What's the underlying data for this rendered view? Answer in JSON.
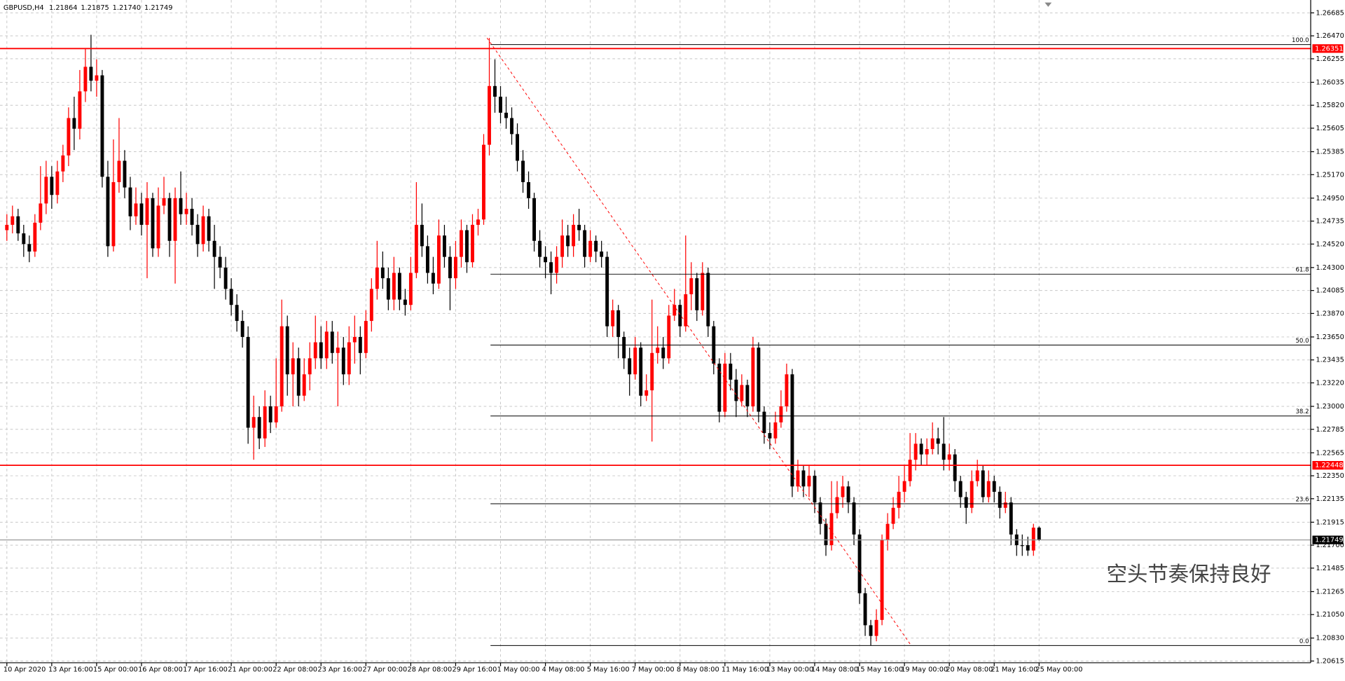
{
  "chart_data": {
    "type": "candlestick",
    "symbol": "GBPUSD,H4",
    "header_values": [
      1.21864,
      1.21875,
      {
        "value": 1.2174,
        "label": "1.21740"
      },
      1.21749
    ],
    "up_color": "#ff0000",
    "down_color": "#000000",
    "grid": true,
    "categories": [
      "10 Apr 2020",
      null,
      null,
      null,
      null,
      null,
      null,
      null,
      "13 Apr 16:00",
      null,
      null,
      null,
      null,
      null,
      null,
      null,
      "15 Apr 00:00",
      null,
      null,
      null,
      null,
      null,
      null,
      null,
      "16 Apr 08:00",
      null,
      null,
      null,
      null,
      null,
      null,
      null,
      "17 Apr 16:00",
      null,
      null,
      null,
      null,
      null,
      null,
      null,
      "21 Apr 00:00",
      null,
      null,
      null,
      null,
      null,
      null,
      null,
      "22 Apr 08:00",
      null,
      null,
      null,
      null,
      null,
      null,
      null,
      "23 Apr 16:00",
      null,
      null,
      null,
      null,
      null,
      null,
      null,
      "27 Apr 00:00",
      null,
      null,
      null,
      null,
      null,
      null,
      null,
      "28 Apr 08:00",
      null,
      null,
      null,
      null,
      null,
      null,
      null,
      "29 Apr 16:00",
      null,
      null,
      null,
      null,
      null,
      null,
      null,
      "1 May 00:00",
      null,
      null,
      null,
      null,
      null,
      null,
      null,
      "4 May 08:00",
      null,
      null,
      null,
      null,
      null,
      null,
      null,
      "5 May 16:00",
      null,
      null,
      null,
      null,
      null,
      null,
      null,
      "7 May 00:00",
      null,
      null,
      null,
      null,
      null,
      null,
      null,
      "8 May 08:00",
      null,
      null,
      null,
      null,
      null,
      null,
      null,
      "11 May 16:00",
      null,
      null,
      null,
      null,
      null,
      null,
      null,
      "13 May 00:00",
      null,
      null,
      null,
      null,
      null,
      null,
      null,
      "14 May 08:00",
      null,
      null,
      null,
      null,
      null,
      null,
      null,
      "15 May 16:00",
      null,
      null,
      null,
      null,
      null,
      null,
      null,
      "19 May 00:00",
      null,
      null,
      null,
      null,
      null,
      null,
      null,
      "20 May 08:00",
      null,
      null,
      null,
      null,
      null,
      null,
      null,
      "21 May 16:00",
      null,
      null,
      null,
      null,
      null,
      null,
      null,
      "25 May 00:00"
    ],
    "open": [
      1.2465,
      1.247,
      1.2478,
      1.2462,
      1.2452,
      1.2445,
      1.2472,
      1.249,
      1.2515,
      1.2498,
      1.252,
      1.2535,
      1.257,
      1.256,
      1.2595,
      1.2618,
      1.2605,
      1.261,
      1.2515,
      1.245,
      1.251,
      1.253,
      1.2505,
      1.2478,
      1.249,
      1.247,
      1.2495,
      1.2448,
      1.2488,
      1.2495,
      1.2455,
      1.2495,
      1.248,
      1.2485,
      1.247,
      1.2452,
      1.2478,
      1.2455,
      1.244,
      1.243,
      1.241,
      1.2395,
      1.238,
      1.2365,
      1.228,
      1.229,
      1.227,
      1.23,
      1.2285,
      1.23,
      1.2375,
      1.233,
      1.2345,
      1.231,
      1.233,
      1.2345,
      1.236,
      1.2345,
      1.237,
      1.235,
      1.2355,
      1.233,
      1.236,
      1.2365,
      1.235,
      1.238,
      1.241,
      1.243,
      1.242,
      1.24,
      1.2425,
      1.24,
      1.2395,
      1.2425,
      1.247,
      1.245,
      1.2425,
      1.2415,
      1.246,
      1.244,
      1.242,
      1.244,
      1.2465,
      1.2435,
      1.247,
      1.2475,
      1.2545,
      1.26,
      1.259,
      1.2575,
      1.257,
      1.2555,
      1.253,
      1.251,
      1.2495,
      1.2455,
      1.244,
      1.2435,
      1.2425,
      1.244,
      1.246,
      1.245,
      1.247,
      1.2465,
      1.244,
      1.2455,
      1.2445,
      1.244,
      1.2375,
      1.239,
      1.2365,
      1.2345,
      1.233,
      1.2355,
      1.231,
      1.2315,
      1.235,
      1.2355,
      1.2345,
      1.2385,
      1.2395,
      1.2375,
      1.2405,
      1.242,
      1.239,
      1.2425,
      1.2375,
      1.234,
      1.2295,
      1.234,
      1.2325,
      1.2305,
      1.232,
      1.23,
      1.2355,
      1.2295,
      1.2275,
      1.227,
      1.2285,
      1.23,
      1.233,
      1.2225,
      1.224,
      1.2225,
      1.2235,
      1.221,
      1.219,
      1.217,
      1.22,
      1.2215,
      1.2225,
      1.221,
      1.218,
      1.2125,
      1.2095,
      1.2085,
      1.21,
      1.2175,
      1.219,
      1.2205,
      1.222,
      1.223,
      1.225,
      1.2265,
      1.2255,
      1.226,
      1.227,
      1.2265,
      1.225,
      1.2255,
      1.223,
      1.2215,
      1.2205,
      1.223,
      1.224,
      1.2215,
      1.223,
      1.222,
      1.2205,
      1.221,
      1.218,
      1.217,
      1.217,
      1.2165,
      1.21864
    ],
    "high": [
      1.248,
      1.2488,
      1.2485,
      1.247,
      1.246,
      1.248,
      1.2525,
      1.253,
      1.2525,
      1.253,
      1.2545,
      1.258,
      1.259,
      1.2615,
      1.2635,
      1.2648,
      1.2625,
      1.2615,
      1.253,
      1.255,
      1.257,
      1.254,
      1.2515,
      1.2505,
      1.25,
      1.251,
      1.25,
      1.2505,
      1.2515,
      1.25,
      1.2505,
      1.252,
      1.25,
      1.2495,
      1.248,
      1.2488,
      1.2485,
      1.247,
      1.245,
      1.244,
      1.242,
      1.2405,
      1.239,
      1.2375,
      1.231,
      1.23,
      1.2315,
      1.231,
      1.2345,
      1.24,
      1.2385,
      1.236,
      1.2355,
      1.2345,
      1.236,
      1.2385,
      1.2375,
      1.238,
      1.238,
      1.237,
      1.2365,
      1.2375,
      1.2385,
      1.2375,
      1.239,
      1.242,
      1.2455,
      1.2445,
      1.243,
      1.244,
      1.243,
      1.241,
      1.244,
      1.251,
      1.249,
      1.246,
      1.244,
      1.2475,
      1.247,
      1.245,
      1.2455,
      1.2475,
      1.247,
      1.248,
      1.2485,
      1.2555,
      1.2645,
      1.2625,
      1.26,
      1.259,
      1.258,
      1.2565,
      1.254,
      1.252,
      1.25,
      1.2465,
      1.245,
      1.2445,
      1.245,
      1.2475,
      1.247,
      1.248,
      1.2485,
      1.247,
      1.2465,
      1.246,
      1.2455,
      1.2445,
      1.24,
      1.2395,
      1.237,
      1.2355,
      1.2365,
      1.236,
      1.233,
      1.24,
      1.2375,
      1.2365,
      1.2395,
      1.241,
      1.24,
      1.246,
      1.2435,
      1.2425,
      1.2435,
      1.243,
      1.238,
      1.2345,
      1.235,
      1.235,
      1.2335,
      1.233,
      1.2325,
      1.2365,
      1.236,
      1.23,
      1.2285,
      1.2295,
      1.2315,
      1.234,
      1.2335,
      1.225,
      1.2245,
      1.2245,
      1.224,
      1.2215,
      1.2195,
      1.223,
      1.223,
      1.2235,
      1.223,
      1.2215,
      1.2185,
      1.213,
      1.21,
      1.211,
      1.218,
      1.22,
      1.2215,
      1.2235,
      1.2245,
      1.2275,
      1.2275,
      1.227,
      1.227,
      1.2285,
      1.228,
      1.229,
      1.2265,
      1.226,
      1.2235,
      1.222,
      1.224,
      1.225,
      1.2245,
      1.224,
      1.2235,
      1.2225,
      1.222,
      1.2215,
      1.2185,
      1.218,
      1.2178,
      1.219,
      1.21875
    ],
    "low": [
      1.2455,
      1.2462,
      1.2455,
      1.244,
      1.2435,
      1.244,
      1.2465,
      1.248,
      1.2485,
      1.249,
      1.251,
      1.2525,
      1.254,
      1.255,
      1.2585,
      1.2595,
      1.259,
      1.2505,
      1.244,
      1.2445,
      1.25,
      1.2495,
      1.2465,
      1.247,
      1.246,
      1.242,
      1.244,
      1.244,
      1.248,
      1.244,
      1.2415,
      1.247,
      1.247,
      1.246,
      1.244,
      1.2445,
      1.2445,
      1.241,
      1.242,
      1.24,
      1.2385,
      1.237,
      1.2355,
      1.2265,
      1.225,
      1.226,
      1.2262,
      1.2275,
      1.228,
      1.2295,
      1.231,
      1.23,
      1.23,
      1.2305,
      1.2315,
      1.2335,
      1.2335,
      1.2335,
      1.234,
      1.23,
      1.232,
      1.232,
      1.234,
      1.233,
      1.2345,
      1.237,
      1.24,
      1.241,
      1.239,
      1.239,
      1.239,
      1.2385,
      1.239,
      1.242,
      1.244,
      1.2415,
      1.2405,
      1.241,
      1.243,
      1.239,
      1.241,
      1.243,
      1.2425,
      1.243,
      1.246,
      1.247,
      1.2535,
      1.2575,
      1.2565,
      1.256,
      1.2545,
      1.252,
      1.25,
      1.2485,
      1.2445,
      1.243,
      1.242,
      1.2405,
      1.2415,
      1.243,
      1.244,
      1.244,
      1.2455,
      1.243,
      1.2435,
      1.2435,
      1.243,
      1.2365,
      1.2365,
      1.2345,
      1.2335,
      1.231,
      1.2325,
      1.23,
      1.2305,
      1.2267,
      1.234,
      1.2335,
      1.234,
      1.238,
      1.2365,
      1.237,
      1.239,
      1.238,
      1.2385,
      1.2365,
      1.233,
      1.2285,
      1.229,
      1.2315,
      1.229,
      1.23,
      1.229,
      1.2295,
      1.2285,
      1.2265,
      1.226,
      1.2265,
      1.228,
      1.2295,
      1.2215,
      1.222,
      1.2215,
      1.2215,
      1.22,
      1.218,
      1.216,
      1.2165,
      1.2195,
      1.2205,
      1.22,
      1.217,
      1.2115,
      1.2085,
      1.2076,
      1.208,
      1.2095,
      1.2165,
      1.2185,
      1.2195,
      1.221,
      1.2225,
      1.224,
      1.2245,
      1.2245,
      1.2255,
      1.2255,
      1.224,
      1.224,
      1.222,
      1.2205,
      1.219,
      1.22,
      1.2225,
      1.221,
      1.221,
      1.221,
      1.2195,
      1.22,
      1.217,
      1.216,
      1.216,
      1.216,
      1.216,
      1.2174
    ],
    "close": [
      1.247,
      1.2478,
      1.2462,
      1.2452,
      1.2445,
      1.2472,
      1.249,
      1.2515,
      1.2498,
      1.252,
      1.2535,
      1.257,
      1.256,
      1.2595,
      1.2618,
      1.2605,
      1.261,
      1.2515,
      1.245,
      1.251,
      1.253,
      1.2505,
      1.2478,
      1.249,
      1.247,
      1.2495,
      1.2448,
      1.2488,
      1.2495,
      1.2455,
      1.2495,
      1.248,
      1.2485,
      1.247,
      1.2452,
      1.2478,
      1.2455,
      1.244,
      1.243,
      1.241,
      1.2395,
      1.238,
      1.2365,
      1.228,
      1.229,
      1.227,
      1.23,
      1.2285,
      1.23,
      1.2375,
      1.233,
      1.2345,
      1.231,
      1.233,
      1.2345,
      1.236,
      1.2345,
      1.237,
      1.235,
      1.2355,
      1.233,
      1.236,
      1.2365,
      1.235,
      1.238,
      1.241,
      1.243,
      1.242,
      1.24,
      1.2425,
      1.24,
      1.2395,
      1.2425,
      1.247,
      1.245,
      1.2425,
      1.2415,
      1.246,
      1.244,
      1.242,
      1.244,
      1.2465,
      1.2435,
      1.247,
      1.2475,
      1.2545,
      1.26,
      1.259,
      1.2575,
      1.257,
      1.2555,
      1.253,
      1.251,
      1.2495,
      1.2455,
      1.244,
      1.2435,
      1.2425,
      1.244,
      1.246,
      1.245,
      1.247,
      1.2465,
      1.244,
      1.2455,
      1.2445,
      1.244,
      1.2375,
      1.239,
      1.2365,
      1.2345,
      1.233,
      1.2355,
      1.231,
      1.2315,
      1.235,
      1.2355,
      1.2345,
      1.2385,
      1.2395,
      1.2375,
      1.2405,
      1.242,
      1.239,
      1.2425,
      1.2375,
      1.234,
      1.2295,
      1.234,
      1.2325,
      1.2305,
      1.232,
      1.23,
      1.2355,
      1.2295,
      1.2275,
      1.227,
      1.2285,
      1.23,
      1.233,
      1.2225,
      1.224,
      1.2225,
      1.2235,
      1.221,
      1.219,
      1.217,
      1.22,
      1.2215,
      1.2225,
      1.221,
      1.218,
      1.2125,
      1.2095,
      1.2085,
      1.21,
      1.2175,
      1.219,
      1.2205,
      1.222,
      1.223,
      1.225,
      1.2265,
      1.2255,
      1.226,
      1.227,
      1.2265,
      1.225,
      1.2255,
      1.223,
      1.2215,
      1.2205,
      1.223,
      1.224,
      1.2215,
      1.223,
      1.222,
      1.2205,
      1.221,
      1.218,
      1.217,
      1.217,
      1.2165,
      1.21864,
      1.21749
    ],
    "ylim": [
      1.20615,
      1.26685
    ],
    "yticks": [
      1.26685,
      {
        "value": 1.2647,
        "label": "1.26470"
      },
      1.26255,
      1.26035,
      {
        "value": 1.2582,
        "label": "1.25820"
      },
      1.25605,
      1.25385,
      {
        "value": 1.2517,
        "label": "1.25170"
      },
      {
        "value": 1.2495,
        "label": "1.24950"
      },
      1.24735,
      {
        "value": 1.2452,
        "label": "1.24520"
      },
      {
        "value": 1.243,
        "label": "1.24300"
      },
      1.24085,
      {
        "value": 1.2387,
        "label": "1.23870"
      },
      {
        "value": 1.2365,
        "label": "1.23650"
      },
      1.23435,
      {
        "value": 1.2322,
        "label": "1.23220"
      },
      {
        "value": 1.23,
        "label": "1.23000"
      },
      1.22785,
      1.22565,
      {
        "value": 1.2235,
        "label": "1.22350"
      },
      1.22135,
      1.21915,
      {
        "value": 1.217,
        "label": "1.21700"
      },
      1.21485,
      1.21265,
      {
        "value": 1.2105,
        "label": "1.21050"
      },
      {
        "value": 1.2083,
        "label": "1.20830"
      },
      1.20615
    ],
    "hlines": [
      {
        "value": 1.26351,
        "color": "#ff0000"
      },
      {
        "value": 1.22448,
        "color": "#ff0000"
      },
      {
        "value": 1.21749,
        "color": "#000000"
      }
    ],
    "fibonacci": {
      "high": 1.26388,
      "low": 1.2076,
      "color": "#000000",
      "levels": [
        {
          "value": 100,
          "label": "100.0"
        },
        {
          "value": 61.8,
          "label": "61.8"
        },
        {
          "value": 50,
          "label": "50.0"
        },
        {
          "value": 38.2,
          "label": "38.2"
        },
        {
          "value": 23.6,
          "label": "23.6"
        },
        {
          "value": 0,
          "label": "0.0"
        }
      ]
    },
    "trendline": {
      "x": [
        85.6,
        161.2
      ],
      "y": [
        1.2645,
        1.2076
      ],
      "color": "#ff0000"
    },
    "annotation": "空头节奏保持良好"
  }
}
